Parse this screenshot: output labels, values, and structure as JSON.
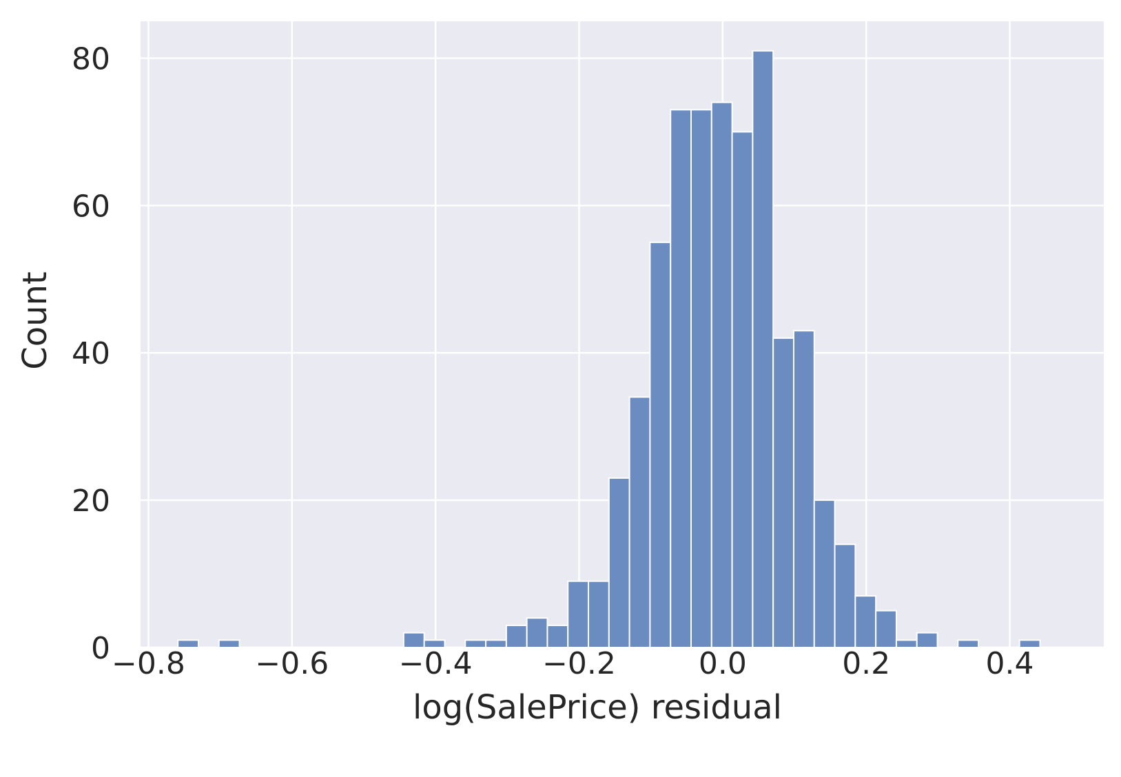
{
  "chart_data": {
    "type": "bar",
    "title": "",
    "xlabel": "log(SalePrice) residual",
    "ylabel": "Count",
    "xlim": [
      -0.811,
      0.531
    ],
    "ylim": [
      0,
      85
    ],
    "xticks": [
      -0.8,
      -0.6,
      -0.4,
      -0.2,
      0.0,
      0.2,
      0.4
    ],
    "xtick_labels": [
      "−0.8",
      "−0.6",
      "−0.4",
      "−0.2",
      "0.0",
      "0.2",
      "0.4"
    ],
    "yticks": [
      0,
      20,
      40,
      60,
      80
    ],
    "ytick_labels": [
      "0",
      "20",
      "40",
      "60",
      "80"
    ],
    "grid": true,
    "bin_start": -0.759,
    "bin_width": 0.0286,
    "counts": [
      1,
      0,
      1,
      0,
      0,
      0,
      0,
      0,
      0,
      0,
      0,
      2,
      1,
      0,
      1,
      1,
      3,
      4,
      3,
      9,
      9,
      23,
      34,
      55,
      73,
      73,
      74,
      70,
      81,
      42,
      43,
      20,
      14,
      7,
      5,
      1,
      2,
      0,
      1,
      0,
      0,
      1
    ],
    "colors": {
      "bar": "#6a8cc0",
      "background": "#eaeaf2",
      "grid": "#ffffff",
      "text": "#262626"
    }
  }
}
